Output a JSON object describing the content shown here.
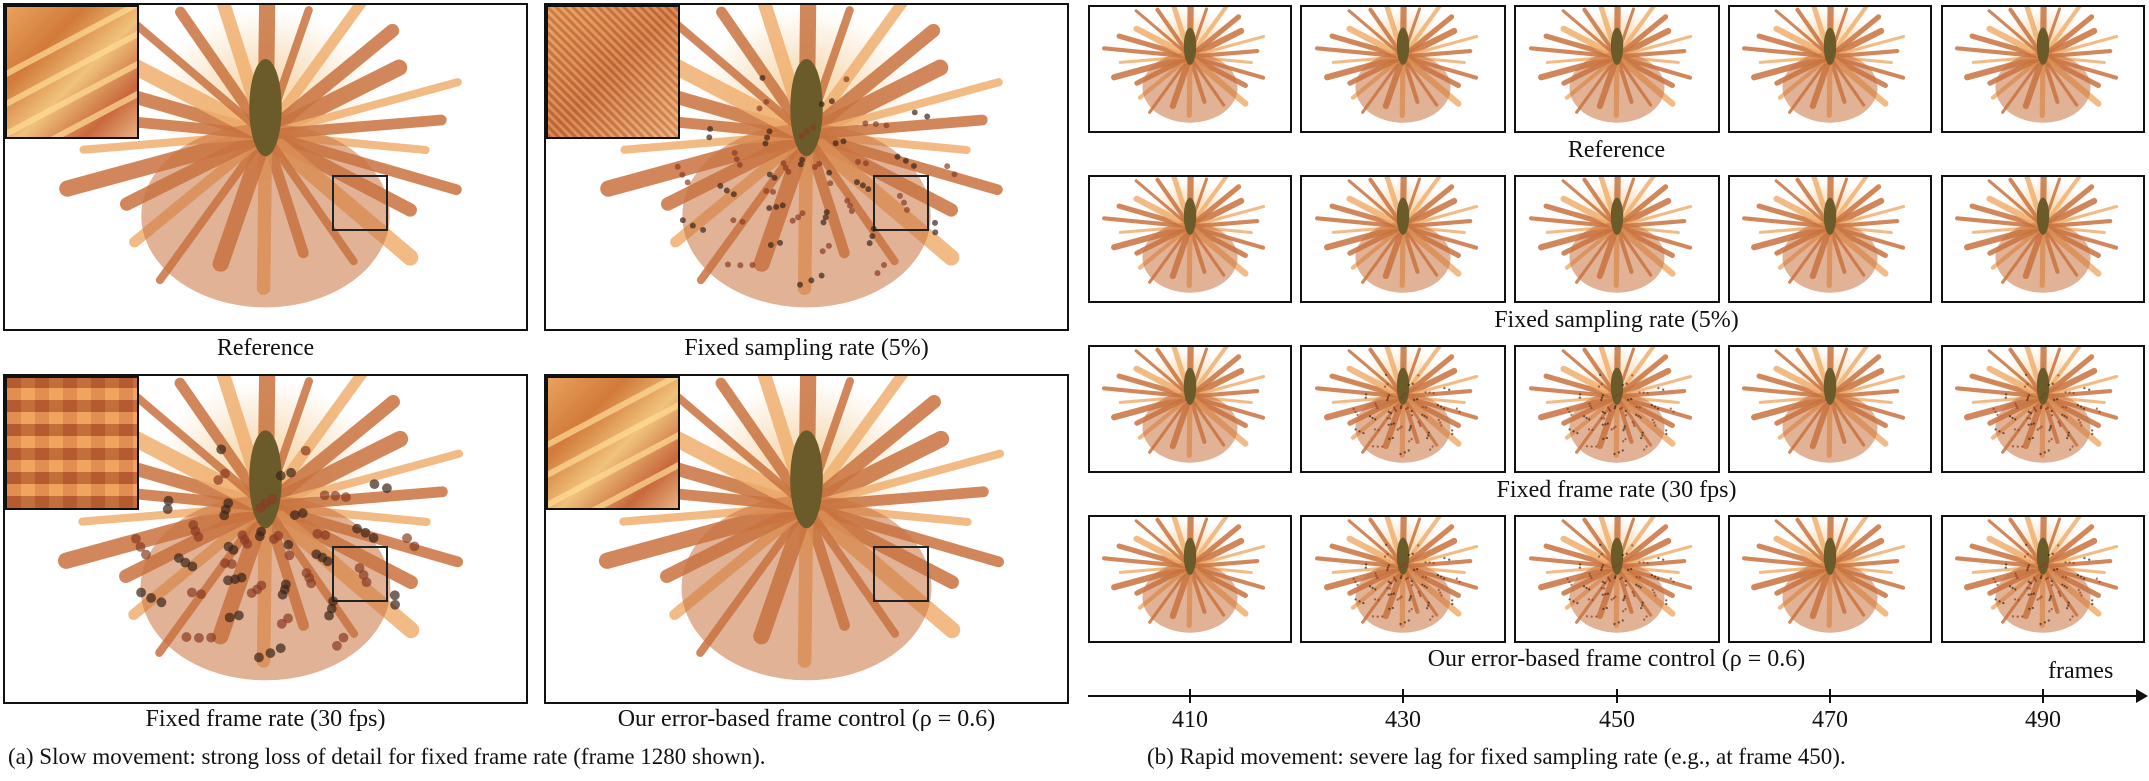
{
  "part_a": {
    "panels": [
      {
        "label": "Reference",
        "quality": "sharp"
      },
      {
        "label": "Fixed sampling rate (5%)",
        "quality": "noisy"
      },
      {
        "label": "Fixed frame rate (30 fps)",
        "quality": "blocky"
      },
      {
        "label": "Our error-based frame control (ρ = 0.6)",
        "quality": "sharp"
      }
    ],
    "caption": "(a)  Slow movement: strong loss of detail for fixed frame rate (frame 1280 shown)."
  },
  "part_b": {
    "rows": [
      {
        "label": "Reference",
        "qualities": [
          "sharp",
          "sharp",
          "sharp",
          "sharp",
          "sharp"
        ]
      },
      {
        "label": "Fixed sampling rate (5%)",
        "qualities": [
          "sharp",
          "sharp",
          "sharp",
          "sharp",
          "sharp"
        ]
      },
      {
        "label": "Fixed frame rate (30 fps)",
        "qualities": [
          "sharp",
          "noisy",
          "noisy",
          "sharp",
          "noisy"
        ]
      },
      {
        "label": "Our error-based frame control (ρ = 0.6)",
        "qualities": [
          "sharp",
          "noisy",
          "noisy",
          "sharp",
          "noisy"
        ]
      }
    ],
    "axis": {
      "title": "frames",
      "ticks": [
        "410",
        "430",
        "450",
        "470",
        "490"
      ]
    },
    "caption": "(b) Rapid movement: severe lag for fixed sampling rate (e.g., at frame 450)."
  },
  "colors": {
    "petal_base": "#c9733f",
    "petal_light": "#f0b070",
    "core": "#6b5a2a",
    "border": "#111111"
  }
}
